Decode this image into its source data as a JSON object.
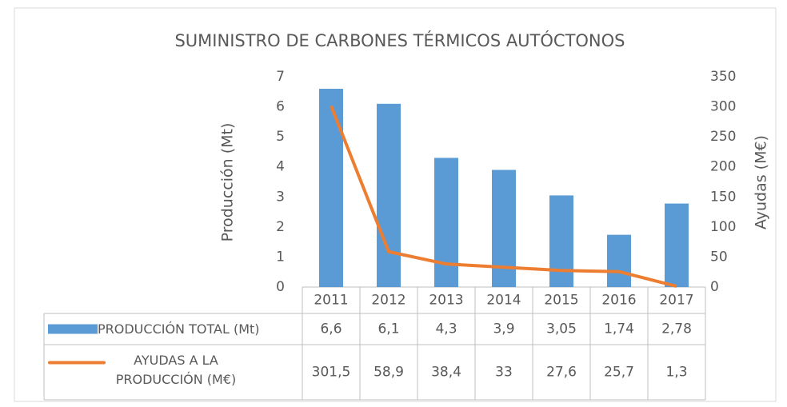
{
  "chart_data": {
    "type": "bar",
    "title": "SUMINISTRO DE CARBONES TÉRMICOS AUTÓCTONOS",
    "y_label": "Producción (Mt)",
    "y2_label": "Ayudas (M€)",
    "categories": [
      "2011",
      "2012",
      "2013",
      "2014",
      "2015",
      "2016",
      "2017"
    ],
    "series": [
      {
        "name": "PRODUCCIÓN TOTAL (Mt)",
        "type": "bar",
        "color": "#5b9bd5",
        "values": [
          6.6,
          6.1,
          4.3,
          3.9,
          3.05,
          1.74,
          2.78
        ],
        "value_labels": [
          "6,6",
          "6,1",
          "4,3",
          "3,9",
          "3,05",
          "1,74",
          "2,78"
        ]
      },
      {
        "name": "AYUDAS A LA PRODUCCIÓN (M€)",
        "type": "line",
        "axis": "y2",
        "color": "#ed7d31",
        "values": [
          301.5,
          58.9,
          38.4,
          33,
          27.6,
          25.7,
          1.3
        ],
        "value_labels": [
          "301,5",
          "58,9",
          "38,4",
          "33",
          "27,6",
          "25,7",
          "1,3"
        ]
      }
    ],
    "ylim": [
      0,
      7
    ],
    "yticks": [
      0,
      1,
      2,
      3,
      4,
      5,
      6,
      7
    ],
    "y2lim": [
      0,
      350
    ],
    "y2ticks": [
      0,
      50,
      100,
      150,
      200,
      250,
      300,
      350
    ],
    "grid": false,
    "data_table": true
  }
}
